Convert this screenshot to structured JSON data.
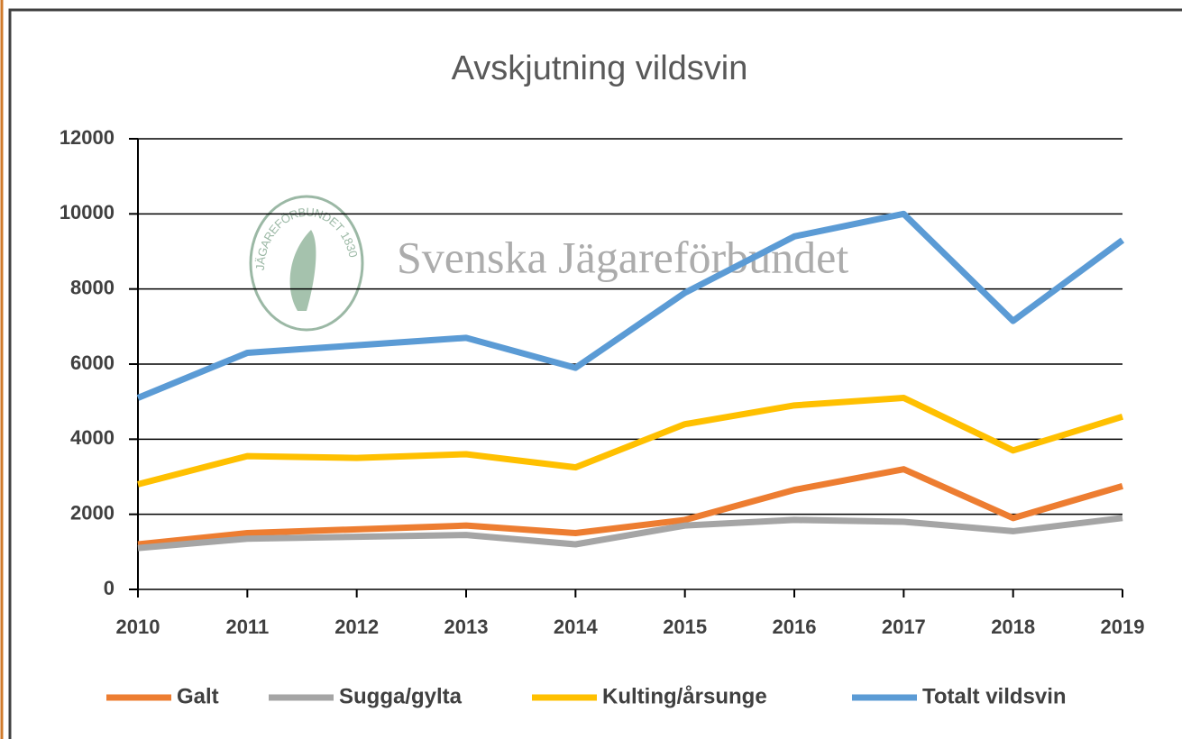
{
  "chart_data": {
    "type": "line",
    "title": "Avskjutning vildsvin",
    "watermark": "Svenska Jägareförbundet",
    "logo_text": "JÄGAREFÖRBUNDET 1830",
    "categories": [
      "2010",
      "2011",
      "2012",
      "2013",
      "2014",
      "2015",
      "2016",
      "2017",
      "2018",
      "2019"
    ],
    "series": [
      {
        "name": "Galt",
        "color": "#ed7d31",
        "values": [
          1200,
          1500,
          1600,
          1700,
          1500,
          1850,
          2650,
          3200,
          1900,
          2750
        ]
      },
      {
        "name": "Sugga/gylta",
        "color": "#a5a5a5",
        "values": [
          1100,
          1350,
          1400,
          1450,
          1200,
          1700,
          1850,
          1800,
          1550,
          1900
        ]
      },
      {
        "name": "Kulting/årsunge",
        "color": "#ffc000",
        "values": [
          2800,
          3550,
          3500,
          3600,
          3250,
          4400,
          4900,
          5100,
          3700,
          4600
        ]
      },
      {
        "name": "Totalt vildsvin",
        "color": "#5b9bd5",
        "values": [
          5100,
          6300,
          6500,
          6700,
          5900,
          7900,
          9400,
          10000,
          7150,
          9300
        ]
      }
    ],
    "ylim": [
      0,
      12000
    ],
    "yticks": [
      0,
      2000,
      4000,
      6000,
      8000,
      10000,
      12000
    ],
    "grid": true,
    "legend": "bottom"
  }
}
